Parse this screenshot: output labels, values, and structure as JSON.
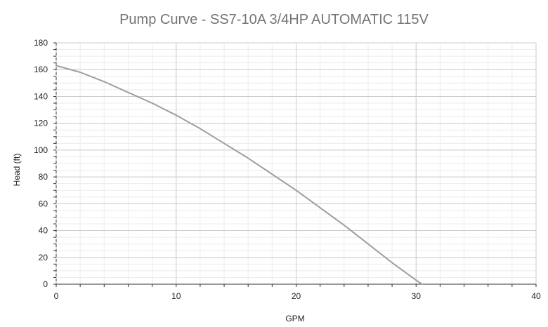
{
  "chart_data": {
    "type": "line",
    "title": "Pump Curve - SS7-10A 3/4HP AUTOMATIC 115V",
    "xlabel": "GPM",
    "ylabel": "Head (ft)",
    "xlim": [
      0,
      40
    ],
    "ylim": [
      0,
      180
    ],
    "x_ticks": [
      "0",
      "10",
      "20",
      "30",
      "40"
    ],
    "y_ticks": [
      "0",
      "20",
      "40",
      "60",
      "80",
      "100",
      "120",
      "140",
      "160",
      "180"
    ],
    "grid": true,
    "legend": "none",
    "series": [
      {
        "color": "#9e9e9e",
        "x": [
          0,
          2,
          4,
          6,
          8,
          10,
          12,
          14,
          16,
          18,
          20,
          22,
          24,
          26,
          28,
          30,
          30.5
        ],
        "y": [
          163,
          158,
          151,
          143,
          135,
          126,
          116,
          105,
          94,
          82,
          70,
          57,
          44,
          30,
          16,
          3,
          0
        ]
      }
    ],
    "colors": {
      "axis": "#333333",
      "major_grid": "#cccccc",
      "minor_grid": "#ececec",
      "title": "#757575",
      "text": "#222222"
    }
  }
}
